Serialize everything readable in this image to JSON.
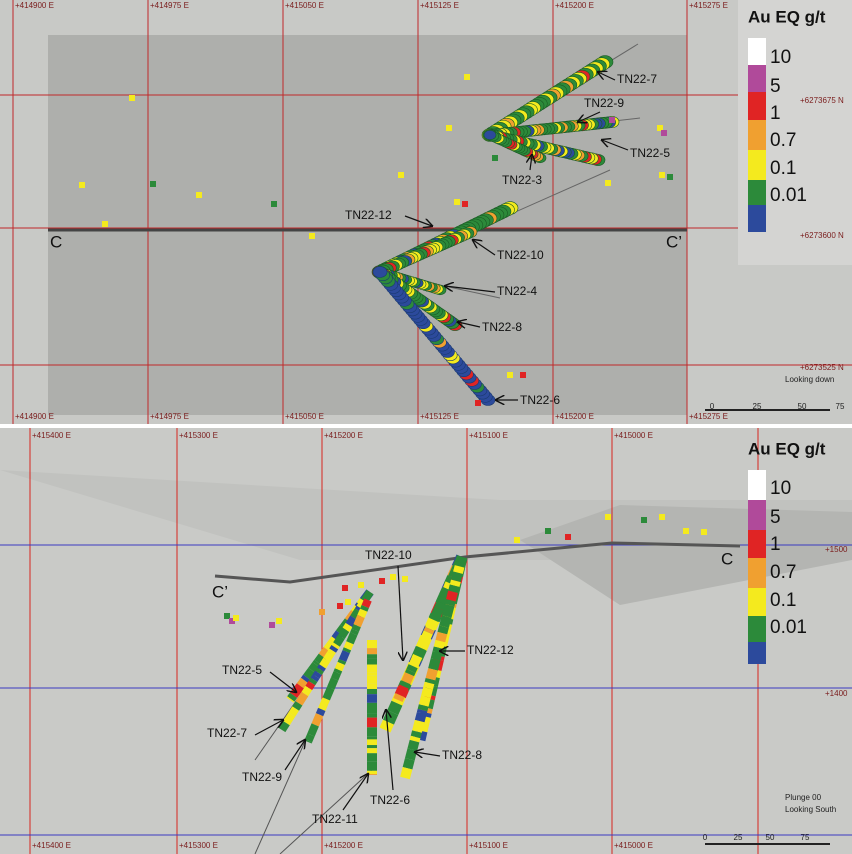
{
  "top": {
    "eastings_top": [
      "+414900 E",
      "+414975 E",
      "+415050 E",
      "+415125 E",
      "+415200 E",
      "+415275 E"
    ],
    "eastings_bottom": [
      "+414900 E",
      "+414975 E",
      "+415050 E",
      "+415125 E",
      "+415200 E",
      "+415275 E"
    ],
    "northings": [
      "+6273675 N",
      "+6273600 N",
      "+6273525 N"
    ],
    "legend": {
      "title": "Au EQ g/t",
      "labels": [
        "10",
        "5",
        "1",
        "0.7",
        "0.1",
        "0.01"
      ]
    },
    "holes": [
      "TN22-7",
      "TN22-9",
      "TN22-5",
      "TN22-3",
      "TN22-12",
      "TN22-10",
      "TN22-4",
      "TN22-8",
      "TN22-6"
    ],
    "section": [
      "C",
      "C’"
    ],
    "view": "Looking down",
    "scale": [
      "0",
      "25",
      "50",
      "75"
    ]
  },
  "bottom": {
    "eastings_top": [
      "+415400 E",
      "+415300 E",
      "+415200 E",
      "+415100 E",
      "+415000 E"
    ],
    "eastings_bottom": [
      "+415400 E",
      "+415300 E",
      "+415200 E",
      "+415100 E",
      "+415000 E"
    ],
    "elevations": [
      "+1500",
      "+1400"
    ],
    "legend": {
      "title": "Au EQ g/t",
      "labels": [
        "10",
        "5",
        "1",
        "0.7",
        "0.1",
        "0.01"
      ]
    },
    "holes": [
      "TN22-10",
      "TN22-12",
      "TN22-5",
      "TN22-7",
      "TN22-9",
      "TN22-8",
      "TN22-6",
      "TN22-11"
    ],
    "section": [
      "C’",
      "C"
    ],
    "view": [
      "Plunge 00",
      "Looking South"
    ],
    "scale": [
      "0",
      "25",
      "50",
      "75"
    ]
  }
}
